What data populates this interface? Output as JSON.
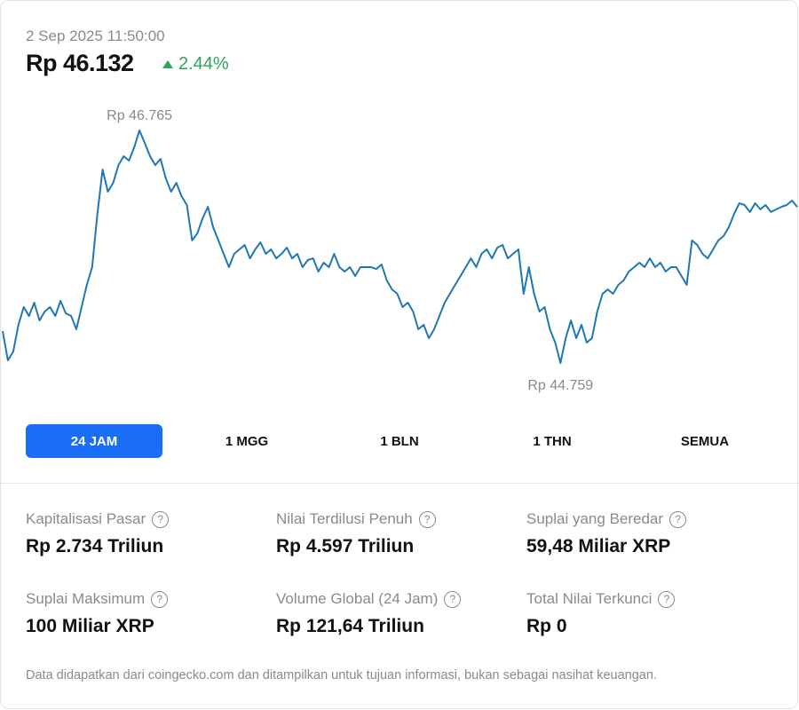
{
  "header": {
    "date": "2 Sep 2025 11:50:00",
    "price": "Rp 46.132",
    "change": "2.44%",
    "change_icon": "triangle-up-icon",
    "change_color": "#2ea35a"
  },
  "chart_data": {
    "type": "line",
    "color": "#1f77b4",
    "ylim": [
      44759,
      46765
    ],
    "max_label": "Rp 46.765",
    "min_label": "Rp 44.759",
    "values": [
      45034,
      44782,
      44858,
      45088,
      45241,
      45165,
      45280,
      45126,
      45203,
      45241,
      45165,
      45295,
      45188,
      45165,
      45050,
      45241,
      45433,
      45586,
      46045,
      46428,
      46237,
      46313,
      46466,
      46543,
      46505,
      46620,
      46765,
      46658,
      46543,
      46466,
      46520,
      46352,
      46237,
      46313,
      46198,
      46122,
      45816,
      45877,
      46007,
      46106,
      45930,
      45816,
      45701,
      45586,
      45701,
      45739,
      45777,
      45662,
      45739,
      45800,
      45701,
      45739,
      45662,
      45701,
      45754,
      45662,
      45701,
      45586,
      45647,
      45662,
      45548,
      45624,
      45586,
      45701,
      45586,
      45548,
      45586,
      45509,
      45586,
      45586,
      45586,
      45570,
      45609,
      45471,
      45394,
      45356,
      45241,
      45280,
      45203,
      45050,
      45088,
      44973,
      45050,
      45165,
      45280,
      45356,
      45433,
      45509,
      45586,
      45662,
      45586,
      45701,
      45739,
      45662,
      45754,
      45777,
      45662,
      45701,
      45739,
      45356,
      45586,
      45356,
      45203,
      45241,
      45050,
      44935,
      44759,
      44973,
      45126,
      44973,
      45088,
      44935,
      44973,
      45203,
      45356,
      45394,
      45356,
      45433,
      45471,
      45548,
      45586,
      45624,
      45586,
      45662,
      45586,
      45624,
      45548,
      45586,
      45586,
      45509,
      45433,
      45816,
      45777,
      45701,
      45662,
      45739,
      45816,
      45854,
      45930,
      46045,
      46137,
      46122,
      46061,
      46137,
      46084,
      46122,
      46061,
      46084,
      46106,
      46122,
      46160,
      46106
    ]
  },
  "tabs": [
    {
      "label": "24 JAM",
      "active": true
    },
    {
      "label": "1 MGG",
      "active": false
    },
    {
      "label": "1 BLN",
      "active": false
    },
    {
      "label": "1 THN",
      "active": false
    },
    {
      "label": "SEMUA",
      "active": false
    }
  ],
  "accent_color": "#1a6ef5",
  "stats": [
    {
      "label": "Kapitalisasi Pasar",
      "value": "Rp 2.734 Triliun",
      "icon": "help-icon"
    },
    {
      "label": "Nilai Terdilusi Penuh",
      "value": "Rp 4.597 Triliun",
      "icon": "help-icon"
    },
    {
      "label": "Suplai yang Beredar",
      "value": "59,48 Miliar XRP",
      "icon": "help-icon"
    },
    {
      "label": "Suplai Maksimum",
      "value": "100 Miliar XRP",
      "icon": "help-icon"
    },
    {
      "label": "Volume Global (24 Jam)",
      "value": "Rp 121,64 Triliun",
      "icon": "help-icon"
    },
    {
      "label": "Total Nilai Terkunci",
      "value": "Rp 0",
      "icon": "help-icon"
    }
  ],
  "help_glyph": "?",
  "footer": "Data didapatkan dari coingecko.com dan ditampilkan untuk tujuan informasi, bukan sebagai nasihat keuangan."
}
